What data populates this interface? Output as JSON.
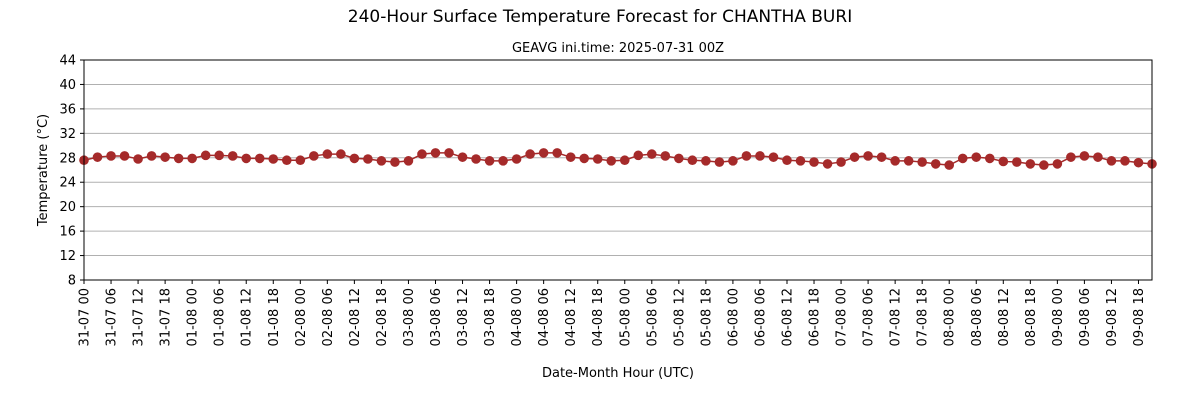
{
  "chart_data": {
    "type": "line",
    "title": "240-Hour Surface Temperature Forecast for CHANTHA BURI",
    "subtitle": "GEAVG ini.time: 2025-07-31 00Z",
    "xlabel": "Date-Month Hour (UTC)",
    "ylabel": "Temperature (°C)",
    "ylim": [
      8,
      44
    ],
    "yticks": [
      8,
      12,
      16,
      20,
      24,
      28,
      32,
      36,
      40,
      44
    ],
    "x_step_hours": 3,
    "xticks": [
      "31-07 00",
      "31-07 06",
      "31-07 12",
      "31-07 18",
      "01-08 00",
      "01-08 06",
      "01-08 12",
      "01-08 18",
      "02-08 00",
      "02-08 06",
      "02-08 12",
      "02-08 18",
      "03-08 00",
      "03-08 06",
      "03-08 12",
      "03-08 18",
      "04-08 00",
      "04-08 06",
      "04-08 12",
      "04-08 18",
      "05-08 00",
      "05-08 06",
      "05-08 12",
      "05-08 18",
      "06-08 00",
      "06-08 06",
      "06-08 12",
      "06-08 18",
      "07-08 00",
      "07-08 06",
      "07-08 12",
      "07-08 18",
      "08-08 00",
      "08-08 06",
      "08-08 12",
      "08-08 18",
      "09-08 00",
      "09-08 06",
      "09-08 12",
      "09-08 18"
    ],
    "grid": "y",
    "color": "#a52a2a",
    "series": [
      {
        "values": [
          27.6,
          28.1,
          28.3,
          28.3,
          27.8,
          28.3,
          28.1,
          27.9,
          27.9,
          28.4,
          28.4,
          28.3,
          27.9,
          27.9,
          27.8,
          27.6,
          27.6,
          28.3,
          28.6,
          28.6,
          27.9,
          27.8,
          27.5,
          27.3,
          27.5,
          28.6,
          28.8,
          28.8,
          28.1,
          27.8,
          27.5,
          27.5,
          27.8,
          28.6,
          28.8,
          28.8,
          28.1,
          27.9,
          27.8,
          27.5,
          27.6,
          28.4,
          28.6,
          28.3,
          27.9,
          27.6,
          27.5,
          27.3,
          27.5,
          28.3,
          28.3,
          28.1,
          27.6,
          27.5,
          27.3,
          27.0,
          27.3,
          28.1,
          28.3,
          28.1,
          27.5,
          27.5,
          27.3,
          27.0,
          26.8,
          27.9,
          28.1,
          27.9,
          27.4,
          27.3,
          27.0,
          26.8,
          27.0,
          28.1,
          28.3,
          28.1,
          27.5,
          27.5,
          27.2,
          27.0
        ]
      }
    ]
  }
}
